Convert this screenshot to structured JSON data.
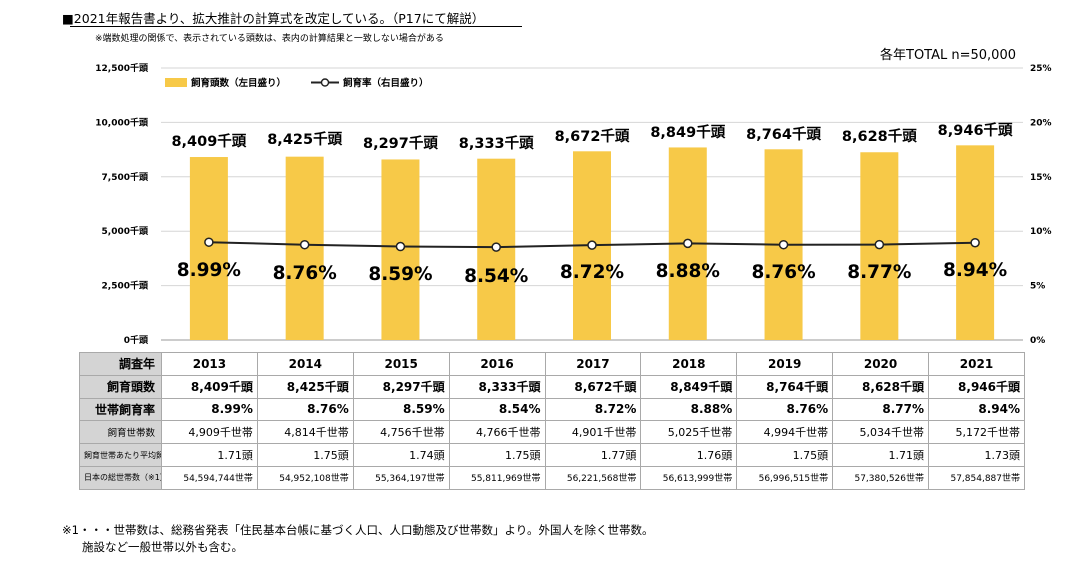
{
  "header": {
    "title": "■2021年報告書より、拡大推計の計算式を改定している。（P17にて解説）",
    "note": "※端数処理の関係で、表示されている頭数は、表内の計算結果と一致しない場合がある",
    "total": "各年TOTAL n=50,000"
  },
  "chart_data": {
    "type": "bar",
    "categories": [
      "2013",
      "2014",
      "2015",
      "2016",
      "2017",
      "2018",
      "2019",
      "2020",
      "2021"
    ],
    "series": [
      {
        "name": "飼育頭数（左目盛り）",
        "type": "bar",
        "axis": "left",
        "values": [
          8409,
          8425,
          8297,
          8333,
          8672,
          8849,
          8764,
          8628,
          8946
        ],
        "labels": [
          "8,409千頭",
          "8,425千頭",
          "8,297千頭",
          "8,333千頭",
          "8,672千頭",
          "8,849千頭",
          "8,764千頭",
          "8,628千頭",
          "8,946千頭"
        ],
        "color": "#f7c948"
      },
      {
        "name": "飼育率（右目盛り）",
        "type": "line",
        "axis": "right",
        "values": [
          8.99,
          8.76,
          8.59,
          8.54,
          8.72,
          8.88,
          8.76,
          8.77,
          8.94
        ],
        "labels": [
          "8.99%",
          "8.76%",
          "8.59%",
          "8.54%",
          "8.72%",
          "8.88%",
          "8.76%",
          "8.77%",
          "8.94%"
        ],
        "color": "#222222"
      }
    ],
    "y_left": {
      "range": [
        0,
        12500
      ],
      "ticks": [
        "0千頭",
        "2,500千頭",
        "5,000千頭",
        "7,500千頭",
        "10,000千頭",
        "12,500千頭"
      ]
    },
    "y_right": {
      "range": [
        0,
        25
      ],
      "ticks": [
        "0%",
        "5%",
        "10%",
        "15%",
        "20%",
        "25%"
      ]
    },
    "grid": true,
    "legend_position": "top-left"
  },
  "table": {
    "header_label": "調査年",
    "years": [
      "2013",
      "2014",
      "2015",
      "2016",
      "2017",
      "2018",
      "2019",
      "2020",
      "2021"
    ],
    "rows": [
      {
        "label": "飼育頭数",
        "style": "bold",
        "cells": [
          "8,409千頭",
          "8,425千頭",
          "8,297千頭",
          "8,333千頭",
          "8,672千頭",
          "8,849千頭",
          "8,764千頭",
          "8,628千頭",
          "8,946千頭"
        ]
      },
      {
        "label": "世帯飼育率",
        "style": "bold",
        "cells": [
          "8.99%",
          "8.76%",
          "8.59%",
          "8.54%",
          "8.72%",
          "8.88%",
          "8.76%",
          "8.77%",
          "8.94%"
        ]
      },
      {
        "label": "飼育世帯数",
        "style": "small",
        "cells": [
          "4,909千世帯",
          "4,814千世帯",
          "4,756千世帯",
          "4,766千世帯",
          "4,901千世帯",
          "5,025千世帯",
          "4,994千世帯",
          "5,034千世帯",
          "5,172千世帯"
        ]
      },
      {
        "label": "飼育世帯あたり平均飼育頭数",
        "style": "small",
        "cells": [
          "1.71頭",
          "1.75頭",
          "1.74頭",
          "1.75頭",
          "1.77頭",
          "1.76頭",
          "1.75頭",
          "1.71頭",
          "1.73頭"
        ]
      },
      {
        "label": "日本の総世帯数（※1）",
        "style": "tiny",
        "cells": [
          "54,594,744世帯",
          "54,952,108世帯",
          "55,364,197世帯",
          "55,811,969世帯",
          "56,221,568世帯",
          "56,613,999世帯",
          "56,996,515世帯",
          "57,380,526世帯",
          "57,854,887世帯"
        ]
      }
    ]
  },
  "footnote": {
    "line1": "※1・・・世帯数は、総務省発表「住民基本台帳に基づく人口、人口動態及び世帯数」より。外国人を除く世帯数。",
    "line2": "施設など一般世帯以外も含む。"
  }
}
